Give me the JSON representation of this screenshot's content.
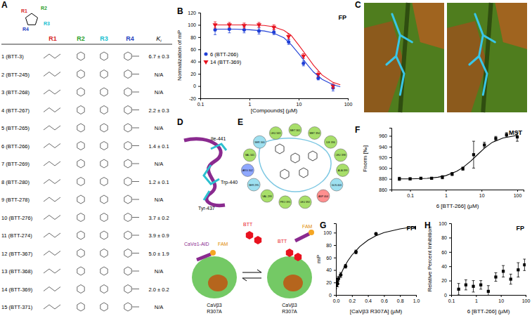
{
  "chart_data": [
    {
      "panel": "B",
      "type": "scatter",
      "annotation": "FP",
      "x_label": "[Compounds] (µM)",
      "y_label": "Normalization of mP",
      "log": "x",
      "legend": "center left",
      "xlim": [
        0.1,
        100
      ],
      "xticks": [
        0.1,
        1,
        10,
        100
      ],
      "ylim": [
        -20,
        120
      ],
      "yticks": [
        -20,
        0,
        20,
        40,
        60,
        80,
        100,
        120
      ],
      "series": [
        {
          "name": "6 (BTT-266)",
          "color": "#1f3fd6",
          "marker": "circle",
          "x": [
            0.2,
            0.39,
            0.78,
            1.56,
            3.13,
            6.25,
            12.5,
            25,
            50
          ],
          "values": [
            92,
            93,
            92,
            90,
            88,
            72,
            37,
            13,
            -3
          ],
          "errors": [
            8,
            6,
            5,
            5,
            4,
            4,
            4,
            3,
            5
          ]
        },
        {
          "name": "14 (BTT-369)",
          "color": "#e8121f",
          "marker": "triangle-down",
          "x": [
            0.2,
            0.39,
            0.78,
            1.56,
            3.13,
            6.25,
            12.5,
            25,
            50
          ],
          "values": [
            100,
            100,
            99,
            100,
            96,
            81,
            49,
            19,
            0
          ],
          "errors": [
            5,
            4,
            4,
            4,
            4,
            4,
            4,
            4,
            4
          ]
        },
        {
          "type": "line",
          "color": "#1f3fd6",
          "line_style": "solid",
          "x": [
            0.2,
            0.5,
            1,
            2,
            3,
            5,
            7,
            10,
            15,
            20,
            30,
            50,
            70
          ],
          "values": [
            93,
            93,
            92,
            90,
            87,
            79,
            68,
            53,
            35,
            23,
            11,
            2,
            -1
          ]
        },
        {
          "type": "line",
          "color": "#e8121f",
          "line_style": "solid",
          "x": [
            0.2,
            0.5,
            1,
            2,
            3,
            5,
            7,
            10,
            15,
            20,
            30,
            50,
            70
          ],
          "values": [
            100,
            100,
            100,
            99,
            97,
            91,
            83,
            67,
            48,
            34,
            18,
            6,
            2
          ]
        }
      ]
    },
    {
      "panel": "F",
      "type": "scatter",
      "annotation": "MST",
      "x_label": "6 [BTT-266] (µM)",
      "y_label": "Fnorm [‰]",
      "log": "x",
      "xlim": [
        0.03,
        150
      ],
      "xticks": [
        0.1,
        1,
        10,
        100
      ],
      "ylim": [
        860,
        975
      ],
      "yticks": [
        860,
        880,
        900,
        920,
        940,
        960
      ],
      "series": [
        {
          "color": "#000000",
          "marker": "square",
          "x": [
            0.05,
            0.1,
            0.2,
            0.4,
            0.8,
            1.5,
            3,
            6,
            12,
            25,
            50,
            100
          ],
          "values": [
            880,
            880,
            881,
            881,
            883,
            889,
            899,
            925,
            943,
            955,
            962,
            958
          ],
          "errors": [
            3,
            2,
            2,
            2,
            3,
            3,
            3,
            25,
            5,
            4,
            4,
            8
          ]
        },
        {
          "type": "line",
          "color": "#000000",
          "line_style": "solid",
          "x": [
            0.05,
            0.1,
            0.3,
            0.6,
            1,
            2,
            3,
            5,
            8,
            12,
            20,
            40,
            100
          ],
          "values": [
            880,
            880,
            881,
            883,
            886,
            894,
            901,
            913,
            926,
            937,
            948,
            956,
            961
          ]
        }
      ]
    },
    {
      "panel": "G",
      "type": "scatter",
      "annotation": "FP",
      "x_label": "[CaVβ3 R307A] (µM)",
      "y_label": "mP",
      "xlim": [
        0,
        1
      ],
      "xticks": [
        {
          "value": 0,
          "label": "0.0"
        },
        0.2,
        0.4,
        0.6,
        0.8,
        {
          "value": 1,
          "label": "1.0"
        }
      ],
      "ylim": [
        0,
        115
      ],
      "yticks": [
        0,
        20,
        40,
        60,
        80,
        100
      ],
      "series": [
        {
          "color": "#000000",
          "marker": "circle",
          "x": [
            0,
            0.01,
            0.02,
            0.03,
            0.06,
            0.12,
            0.25,
            0.5,
            1
          ],
          "values": [
            15,
            20,
            18,
            26,
            32,
            46,
            69,
            98,
            108
          ],
          "errors": [
            5,
            6,
            5,
            4,
            4,
            3,
            3,
            2,
            2
          ]
        },
        {
          "type": "line",
          "color": "#000000",
          "line_style": "solid",
          "x": [
            0,
            0.05,
            0.1,
            0.15,
            0.2,
            0.3,
            0.4,
            0.5,
            0.6,
            0.8,
            1
          ],
          "values": [
            12,
            30,
            44,
            55,
            64,
            78,
            88,
            95,
            100,
            106,
            110
          ]
        }
      ]
    },
    {
      "panel": "H",
      "type": "scatter",
      "annotation": "FP",
      "x_label": "6 [BTT-266] (µM)",
      "y_label": "Relative Percent Inhibition",
      "log": "x",
      "xlim": [
        0.1,
        100
      ],
      "xticks": [
        0.1,
        1,
        10,
        100
      ],
      "ylim": [
        0,
        100
      ],
      "yticks": [
        0,
        20,
        40,
        60,
        80,
        100
      ],
      "series": [
        {
          "color": "#000000",
          "marker": "square",
          "x": [
            0.2,
            0.39,
            0.78,
            1.56,
            3.13,
            6.25,
            12.5,
            25,
            50,
            90
          ],
          "values": [
            8,
            14,
            12,
            14,
            5,
            25,
            33,
            22,
            35,
            42
          ],
          "errors": [
            8,
            7,
            8,
            6,
            8,
            6,
            8,
            7,
            10,
            8
          ]
        }
      ]
    }
  ],
  "panel_a": {
    "panel": "A",
    "columns": [
      "R1",
      "R2",
      "R3",
      "R4",
      "Ki"
    ],
    "rows": [
      {
        "label": "1 (BTT-3)",
        "ki": "6.7 ± 0.3"
      },
      {
        "label": "2 (BTT-245)",
        "ki": "N/A"
      },
      {
        "label": "3 (BTT-268)",
        "ki": "N/A"
      },
      {
        "label": "4 (BTT-267)",
        "ki": "2.2 ± 0.3"
      },
      {
        "label": "5 (BTT-265)",
        "ki": "N/A"
      },
      {
        "label": "6 (BTT-266)",
        "ki": "1.4 ± 0.1"
      },
      {
        "label": "7 (BTT-269)",
        "ki": "N/A"
      },
      {
        "label": "8 (BTT-280)",
        "ki": "1.2 ± 0.1"
      },
      {
        "label": "9 (BTT-278)",
        "ki": "N/A"
      },
      {
        "label": "10 (BTT-276)",
        "ki": "3.7 ± 0.2"
      },
      {
        "label": "11 (BTT-274)",
        "ki": "3.9 ± 0.9"
      },
      {
        "label": "12 (BTT-367)",
        "ki": "5.0 ± 1.9"
      },
      {
        "label": "13 (BTT-368)",
        "ki": "N/A"
      },
      {
        "label": "14 (BTT-369)",
        "ki": "2.0 ± 0.2"
      },
      {
        "label": "15 (BTT-371)",
        "ki": "N/A"
      }
    ]
  },
  "panel_c": {
    "panel": "C"
  },
  "panel_d": {
    "panel": "D",
    "residues": [
      "Ile-441",
      "Trp-440",
      "Tyr-437"
    ]
  },
  "panel_e": {
    "panel": "E",
    "residues": [
      "MET 361",
      "MET 394",
      "ILE 396",
      "LEU 398",
      "ALA 399",
      "GLN 403",
      "ASP 404",
      "LEU 392",
      "PRO 391",
      "VAL 299",
      "SER 295",
      "ARG 302",
      "VAL 341",
      "SER 340",
      "LEU 343"
    ]
  },
  "panel_g": {
    "aid": "CaVα1-AID",
    "fam": "FAM",
    "btt": "BTT",
    "beta": "CaVβ3",
    "mutant": "R307A"
  }
}
